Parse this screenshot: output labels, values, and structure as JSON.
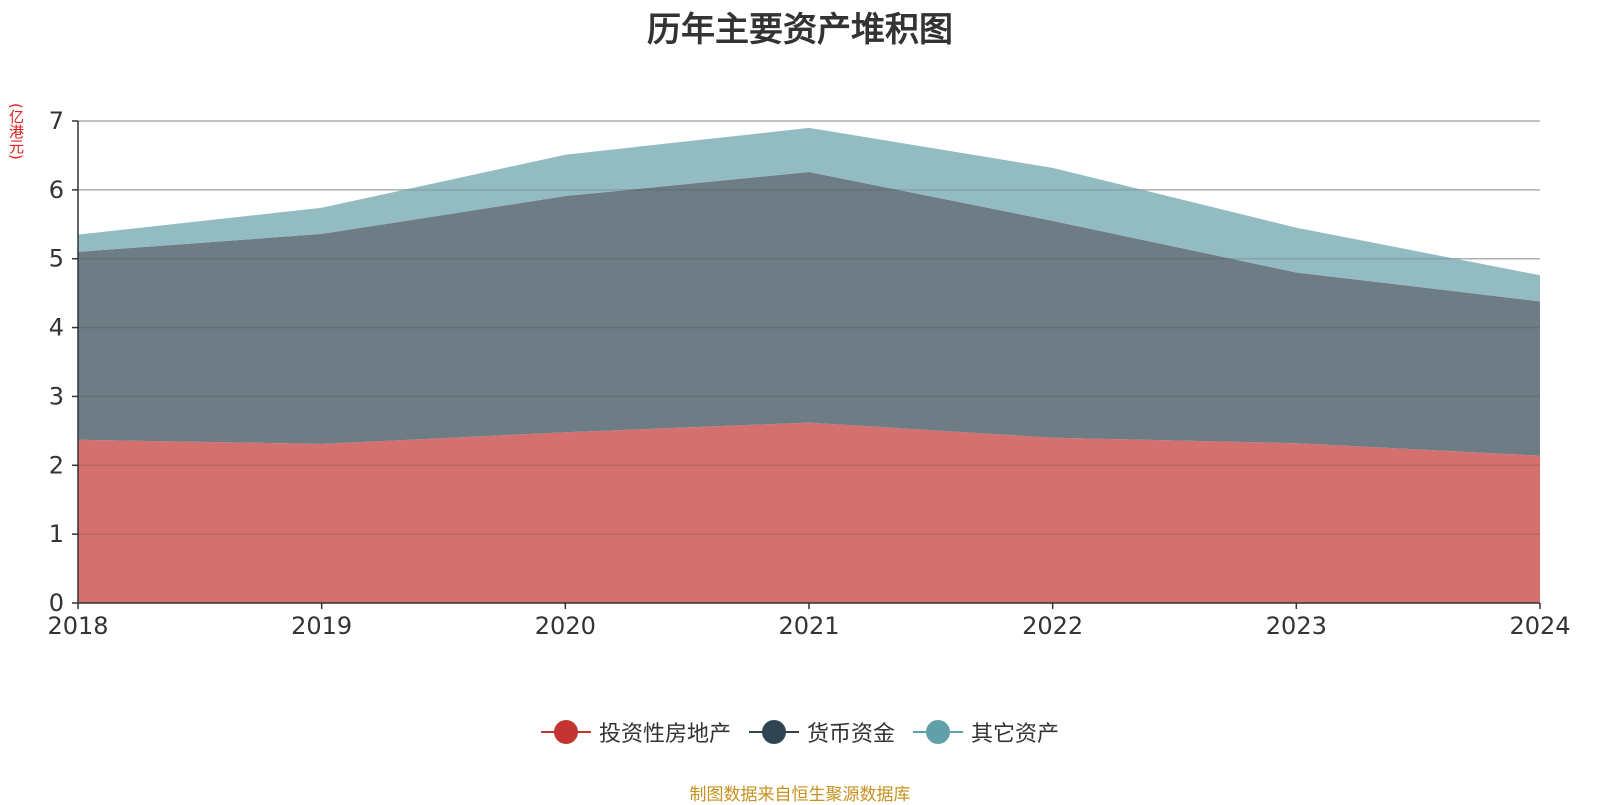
{
  "chart_data": {
    "type": "area",
    "stacked": true,
    "title": "历年主要资产堆积图",
    "unit_label": "(亿港元)",
    "x": [
      "2018",
      "2019",
      "2020",
      "2021",
      "2022",
      "2023",
      "2024"
    ],
    "series": [
      {
        "name": "投资性房地产",
        "color": "#c23531",
        "fill": "#d4706e",
        "values": [
          2.37,
          2.31,
          2.48,
          2.62,
          2.4,
          2.32,
          2.14
        ]
      },
      {
        "name": "货币资金",
        "color": "#2f4554",
        "fill": "#6e7c86",
        "values": [
          2.73,
          3.05,
          3.43,
          3.64,
          3.15,
          2.48,
          2.24
        ]
      },
      {
        "name": "其它资产",
        "color": "#61a0a8",
        "fill": "#92bbc2",
        "values": [
          0.25,
          0.38,
          0.6,
          0.64,
          0.77,
          0.65,
          0.38
        ]
      }
    ],
    "ylim": [
      0,
      7
    ],
    "yticks": [
      0,
      1,
      2,
      3,
      4,
      5,
      6,
      7
    ],
    "grid": true,
    "legend_position": "bottom"
  },
  "source_note": "制图数据来自恒生聚源数据库"
}
